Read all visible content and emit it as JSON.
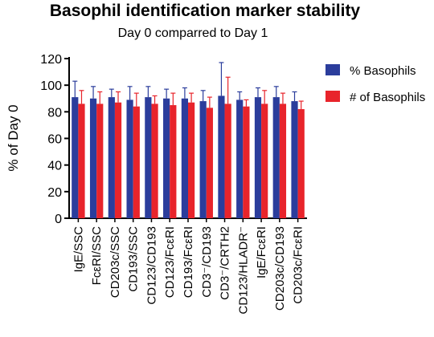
{
  "chart_data": {
    "type": "bar",
    "title": "Basophil identification marker stability",
    "subtitle": "Day 0 comparred to Day 1",
    "ylabel": "% of Day 0",
    "xlabel": "",
    "ylim": [
      0,
      120
    ],
    "yticks": [
      0,
      20,
      40,
      60,
      80,
      100,
      120
    ],
    "grid": false,
    "legend_position": "right",
    "categories": [
      "IgE/SSC",
      "FcεRI/SSC",
      "CD203c/SSC",
      "CD193/SSC",
      "CD123/CD193",
      "CD123/FcεRI",
      "CD193/FcεRI",
      "CD3⁻/CD193",
      "CD3⁻/CRTH2",
      "CD123/HLADR⁻",
      "IgE/FcεRI",
      "CD203c/CD193",
      "CD203c/FcεRI"
    ],
    "series": [
      {
        "name": "% Basophils",
        "color": "#2b3d9c",
        "values": [
          91,
          90,
          91,
          89,
          91,
          90,
          90,
          88,
          92,
          89,
          91,
          91,
          88
        ],
        "errors": [
          12,
          9,
          6,
          10,
          8,
          7,
          8,
          8,
          25,
          6,
          7,
          8,
          7
        ]
      },
      {
        "name": "# of Basophils",
        "color": "#e8242b",
        "values": [
          86,
          86,
          87,
          84,
          86,
          85,
          87,
          83,
          86,
          84,
          86,
          86,
          82
        ],
        "errors": [
          10,
          9,
          8,
          10,
          6,
          9,
          7,
          8,
          20,
          5,
          10,
          8,
          6
        ]
      }
    ]
  }
}
